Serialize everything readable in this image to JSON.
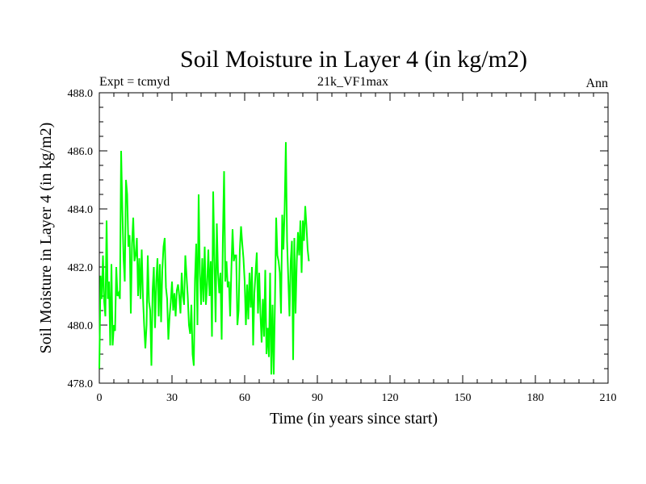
{
  "chart_data": {
    "type": "line",
    "title": "Soil Moisture in Layer 4 (in kg/m2)",
    "subtitle_left": "Expt = tcmyd",
    "subtitle_center": "21k_VF1max",
    "subtitle_right": "Ann",
    "xlabel": "Time (in years since start)",
    "ylabel": "Soil Moisture in Layer 4 (in kg/m2)",
    "xlim": [
      0,
      210
    ],
    "ylim": [
      478.0,
      488.0
    ],
    "xticks": [
      0,
      30,
      60,
      90,
      120,
      150,
      180,
      210
    ],
    "xtick_labels": [
      "0",
      "30",
      "60",
      "90",
      "120",
      "150",
      "180",
      "210"
    ],
    "yticks": [
      478.0,
      480.0,
      482.0,
      484.0,
      486.0,
      488.0
    ],
    "ytick_labels": [
      "478.0",
      "480.0",
      "482.0",
      "484.0",
      "486.0",
      "488.0"
    ],
    "line_color": "#00ff00",
    "series": [
      {
        "name": "21k_VF1max",
        "x_start": 0,
        "x_step": 0.5,
        "values": [
          478.5,
          481.7,
          480.9,
          482.4,
          480.8,
          480.3,
          483.6,
          480.9,
          481.5,
          479.3,
          482.1,
          479.3,
          480.0,
          479.8,
          482.0,
          481.0,
          481.1,
          480.9,
          486.0,
          484.0,
          482.3,
          481.5,
          485.0,
          484.5,
          482.7,
          483.1,
          480.4,
          482.8,
          483.7,
          482.2,
          482.4,
          483.0,
          481.0,
          482.3,
          480.9,
          482.6,
          481.0,
          480.0,
          479.2,
          480.0,
          482.4,
          480.8,
          480.5,
          478.6,
          481.2,
          482.0,
          479.9,
          481.5,
          482.3,
          480.3,
          482.1,
          480.1,
          481.9,
          482.7,
          483.0,
          481.3,
          480.9,
          479.5,
          480.3,
          480.8,
          481.5,
          480.5,
          481.1,
          480.3,
          481.2,
          481.4,
          481.0,
          480.4,
          481.8,
          481.0,
          480.7,
          482.4,
          481.7,
          481.0,
          480.0,
          479.7,
          480.7,
          479.0,
          478.6,
          481.6,
          482.8,
          480.0,
          484.5,
          481.8,
          480.7,
          482.3,
          480.8,
          482.7,
          480.7,
          481.4,
          482.6,
          481.0,
          482.2,
          479.6,
          484.6,
          482.3,
          480.1,
          483.5,
          481.8,
          481.1,
          481.8,
          479.5,
          483.0,
          485.3,
          481.5,
          482.2,
          481.3,
          481.5,
          480.3,
          481.9,
          483.3,
          482.2,
          482.4,
          482.4,
          480.0,
          480.5,
          482.6,
          483.4,
          482.8,
          482.3,
          481.5,
          480.0,
          481.4,
          480.2,
          481.8,
          480.6,
          482.0,
          479.3,
          481.1,
          481.8,
          482.5,
          480.4,
          481.8,
          480.4,
          479.4,
          480.9,
          479.6,
          481.9,
          479.0,
          479.9,
          478.9,
          481.8,
          478.3,
          480.7,
          478.3,
          480.8,
          483.7,
          482.4,
          482.2,
          481.8,
          480.4,
          483.8,
          482.6,
          484.0,
          486.3,
          482.9,
          481.6,
          480.3,
          482.2,
          482.9,
          478.8,
          483.0,
          480.4,
          482.2,
          483.2,
          482.4,
          483.6,
          481.8,
          483.6,
          482.9,
          484.1,
          483.4,
          482.6,
          482.2
        ]
      }
    ]
  }
}
